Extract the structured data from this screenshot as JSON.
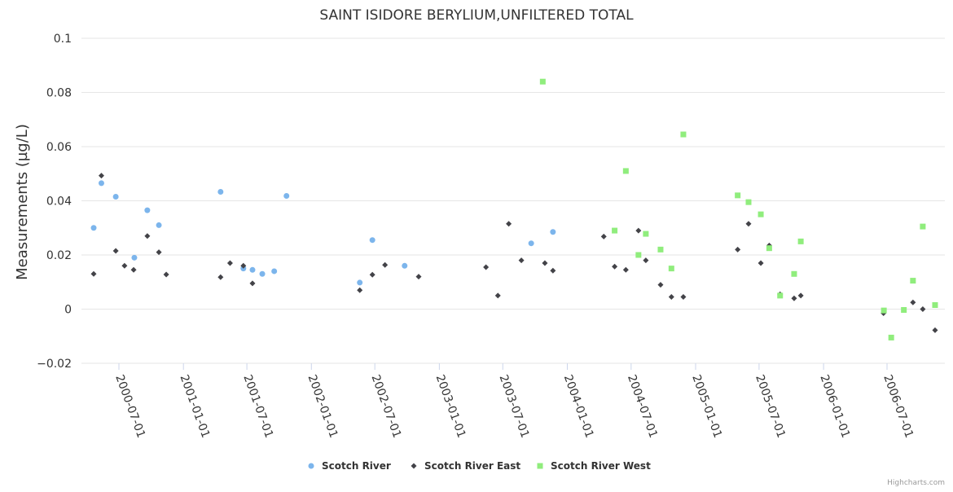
{
  "chart_data": {
    "type": "scatter",
    "title": "SAINT ISIDORE BERYLIUM,UNFILTERED TOTAL",
    "xlabel": "",
    "ylabel": "Measurements (µg/L)",
    "ylim": [
      -0.02,
      0.1
    ],
    "yticks": [
      -0.02,
      0,
      0.02,
      0.04,
      0.06,
      0.08,
      0.1
    ],
    "ytick_labels": [
      "−0.02",
      "0",
      "0.02",
      "0.04",
      "0.06",
      "0.08",
      "0.1"
    ],
    "xticks": [
      "2000-07-01",
      "2001-01-01",
      "2001-07-01",
      "2002-01-01",
      "2002-07-01",
      "2003-01-01",
      "2003-07-01",
      "2004-01-01",
      "2004-07-01",
      "2005-01-01",
      "2005-07-01",
      "2006-01-01",
      "2006-07-01"
    ],
    "grid": true,
    "legend_position": "bottom-center",
    "credits": "Highcharts.com",
    "series": [
      {
        "name": "Scotch River",
        "color": "#7cb5ec",
        "marker": "circle",
        "points": [
          [
            "2000-04-20",
            0.03
          ],
          [
            "2000-05-12",
            0.0465
          ],
          [
            "2000-06-22",
            0.0415
          ],
          [
            "2000-08-14",
            0.019
          ],
          [
            "2000-09-20",
            0.0365
          ],
          [
            "2000-10-23",
            0.031
          ],
          [
            "2001-04-17",
            0.0433
          ],
          [
            "2001-06-21",
            0.015
          ],
          [
            "2001-07-17",
            0.0145
          ],
          [
            "2001-08-14",
            0.013
          ],
          [
            "2001-09-17",
            0.014
          ],
          [
            "2001-10-22",
            0.0418
          ],
          [
            "2002-05-19",
            0.0098
          ],
          [
            "2002-06-24",
            0.0255
          ],
          [
            "2002-09-24",
            0.016
          ],
          [
            "2003-09-20",
            0.0243
          ],
          [
            "2003-11-21",
            0.0285
          ]
        ]
      },
      {
        "name": "Scotch River East",
        "color": "#434348",
        "marker": "diamond",
        "points": [
          [
            "2000-04-20",
            0.013
          ],
          [
            "2000-05-12",
            0.0493
          ],
          [
            "2000-06-22",
            0.0215
          ],
          [
            "2000-07-17",
            0.016
          ],
          [
            "2000-08-12",
            0.0145
          ],
          [
            "2000-09-20",
            0.027
          ],
          [
            "2000-10-23",
            0.021
          ],
          [
            "2000-11-13",
            0.0128
          ],
          [
            "2001-04-17",
            0.0118
          ],
          [
            "2001-05-14",
            0.017
          ],
          [
            "2001-06-21",
            0.016
          ],
          [
            "2001-07-17",
            0.0095
          ],
          [
            "2002-05-19",
            0.007
          ],
          [
            "2002-06-24",
            0.0127
          ],
          [
            "2002-07-30",
            0.0163
          ],
          [
            "2002-11-03",
            0.012
          ],
          [
            "2003-05-14",
            0.0155
          ],
          [
            "2003-06-17",
            0.005
          ],
          [
            "2003-07-18",
            0.0315
          ],
          [
            "2003-08-23",
            0.018
          ],
          [
            "2003-10-29",
            0.017
          ],
          [
            "2003-11-21",
            0.0142
          ],
          [
            "2004-04-14",
            0.0268
          ],
          [
            "2004-05-15",
            0.0157
          ],
          [
            "2004-06-16",
            0.0145
          ],
          [
            "2004-07-22",
            0.029
          ],
          [
            "2004-08-12",
            0.018
          ],
          [
            "2004-09-23",
            0.009
          ],
          [
            "2004-10-24",
            0.0045
          ],
          [
            "2004-11-27",
            0.0045
          ],
          [
            "2005-05-01",
            0.022
          ],
          [
            "2005-06-01",
            0.0315
          ],
          [
            "2005-07-06",
            0.017
          ],
          [
            "2005-07-30",
            0.0235
          ],
          [
            "2005-08-30",
            0.0055
          ],
          [
            "2005-10-09",
            0.004
          ],
          [
            "2005-10-28",
            0.005
          ],
          [
            "2006-06-21",
            -0.0015
          ],
          [
            "2006-09-13",
            0.0025
          ],
          [
            "2006-10-11",
            0.0
          ],
          [
            "2006-11-15",
            -0.0078
          ]
        ]
      },
      {
        "name": "Scotch River West",
        "color": "#90ed7d",
        "marker": "square",
        "points": [
          [
            "2003-10-23",
            0.084
          ],
          [
            "2004-05-15",
            0.029
          ],
          [
            "2004-06-16",
            0.051
          ],
          [
            "2004-07-22",
            0.02
          ],
          [
            "2004-08-12",
            0.0278
          ],
          [
            "2004-09-23",
            0.022
          ],
          [
            "2004-10-24",
            0.015
          ],
          [
            "2004-11-27",
            0.0645
          ],
          [
            "2005-05-01",
            0.042
          ],
          [
            "2005-06-01",
            0.0395
          ],
          [
            "2005-07-06",
            0.035
          ],
          [
            "2005-07-30",
            0.0225
          ],
          [
            "2005-08-30",
            0.005
          ],
          [
            "2005-10-09",
            0.013
          ],
          [
            "2005-10-28",
            0.025
          ],
          [
            "2006-06-22",
            -0.0005
          ],
          [
            "2006-07-13",
            -0.0105
          ],
          [
            "2006-08-18",
            -0.0003
          ],
          [
            "2006-09-13",
            0.0105
          ],
          [
            "2006-10-11",
            0.0305
          ],
          [
            "2006-11-15",
            0.0015
          ]
        ]
      }
    ]
  }
}
